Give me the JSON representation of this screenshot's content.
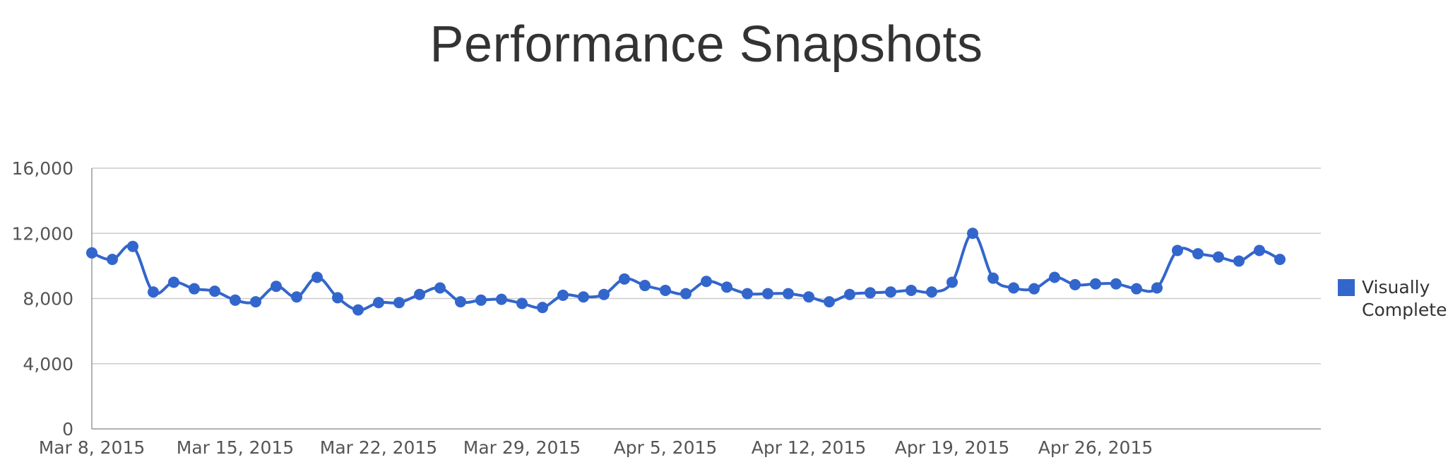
{
  "chart_data": {
    "type": "line",
    "title": "Performance Snapshots",
    "xlabel": "",
    "ylabel": "",
    "ylim": [
      0,
      16000
    ],
    "y_ticks": [
      0,
      4000,
      8000,
      12000,
      16000
    ],
    "y_tick_labels": [
      "0",
      "4,000",
      "8,000",
      "12,000",
      "16,000"
    ],
    "x_tick_labels": [
      "Mar 8, 2015",
      "Mar 15, 2015",
      "Mar 22, 2015",
      "Mar 29, 2015",
      "Apr 5, 2015",
      "Apr 12, 2015",
      "Apr 19, 2015",
      "Apr 26, 2015"
    ],
    "x_tick_dates": [
      "2015-03-08",
      "2015-03-15",
      "2015-03-22",
      "2015-03-29",
      "2015-04-05",
      "2015-04-12",
      "2015-04-19",
      "2015-04-26"
    ],
    "grid": true,
    "legend_position": "right",
    "x": [
      "2015-03-08",
      "2015-03-09",
      "2015-03-10",
      "2015-03-11",
      "2015-03-12",
      "2015-03-13",
      "2015-03-14",
      "2015-03-15",
      "2015-03-16",
      "2015-03-17",
      "2015-03-18",
      "2015-03-19",
      "2015-03-20",
      "2015-03-21",
      "2015-03-22",
      "2015-03-23",
      "2015-03-24",
      "2015-03-25",
      "2015-03-26",
      "2015-03-27",
      "2015-03-28",
      "2015-03-29",
      "2015-03-30",
      "2015-03-31",
      "2015-04-01",
      "2015-04-02",
      "2015-04-03",
      "2015-04-04",
      "2015-04-05",
      "2015-04-06",
      "2015-04-07",
      "2015-04-08",
      "2015-04-09",
      "2015-04-10",
      "2015-04-11",
      "2015-04-12",
      "2015-04-13",
      "2015-04-14",
      "2015-04-15",
      "2015-04-16",
      "2015-04-17",
      "2015-04-18",
      "2015-04-19",
      "2015-04-20",
      "2015-04-21",
      "2015-04-22",
      "2015-04-23",
      "2015-04-24",
      "2015-04-25",
      "2015-04-26",
      "2015-04-27",
      "2015-04-28",
      "2015-04-29",
      "2015-04-30",
      "2015-05-01",
      "2015-05-02",
      "2015-05-03",
      "2015-05-04",
      "2015-05-05",
      "2015-05-06",
      "2015-05-07"
    ],
    "series": [
      {
        "name": "Visually Complete",
        "color": "#3366CC",
        "values": [
          10800,
          10400,
          11200,
          8400,
          9000,
          8600,
          8450,
          7900,
          7800,
          8750,
          8100,
          9300,
          8050,
          7300,
          7750,
          7750,
          8250,
          8650,
          7800,
          7900,
          7950,
          7700,
          7450,
          8200,
          8100,
          8250,
          9200,
          8800,
          8500,
          8300,
          9050,
          8700,
          8300,
          8300,
          8300,
          8100,
          7800,
          8250,
          8350,
          8400,
          8500,
          8400,
          9000,
          12000,
          9250,
          8650,
          8600,
          9300,
          8850,
          8900,
          8900,
          8600,
          8650,
          10950,
          10750,
          10550,
          10300,
          10950,
          10400,
          null,
          null
        ]
      }
    ]
  }
}
